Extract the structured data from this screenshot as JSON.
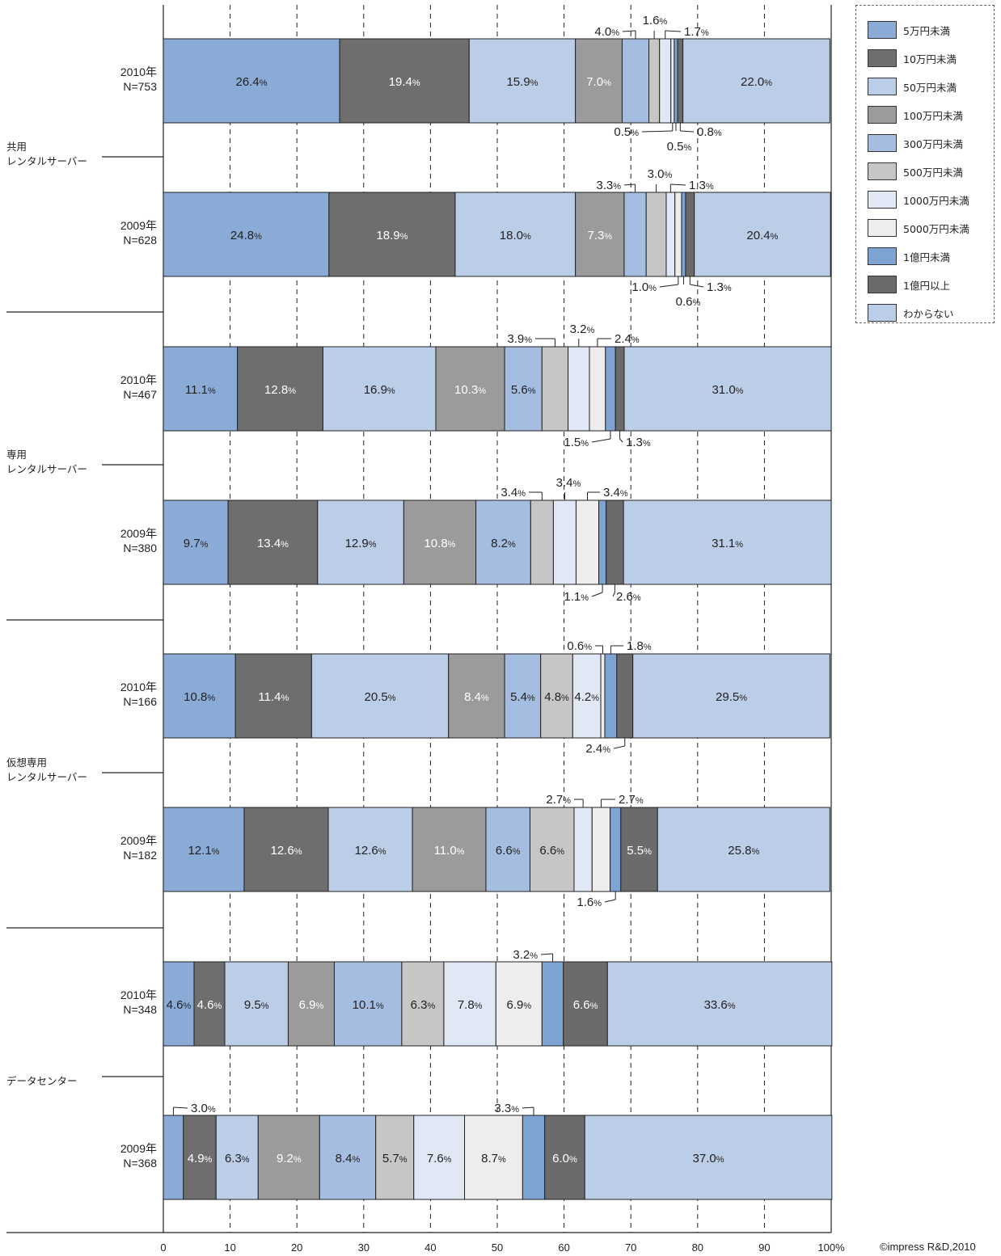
{
  "chart_data": {
    "type": "bar",
    "orientation": "horizontal",
    "stacked": true,
    "xlim": [
      0,
      100
    ],
    "x_ticks": [
      "0",
      "10",
      "20",
      "30",
      "40",
      "50",
      "60",
      "70",
      "80",
      "90",
      "100%"
    ],
    "grid": "vertical dashed",
    "legend_position": "top-right",
    "series": [
      {
        "name": "5万円未満",
        "color": "#8aabd6"
      },
      {
        "name": "10万円未満",
        "color": "#6e6e6e"
      },
      {
        "name": "50万円未満",
        "color": "#bccde8"
      },
      {
        "name": "100万円未満",
        "color": "#9b9b9b"
      },
      {
        "name": "300万円未満",
        "color": "#a5bde0"
      },
      {
        "name": "500万円未満",
        "color": "#c6c6c6"
      },
      {
        "name": "1000万円未満",
        "color": "#e1e8f5"
      },
      {
        "name": "5000万円未満",
        "color": "#ededed"
      },
      {
        "name": "1億円未満",
        "color": "#7ea4d4"
      },
      {
        "name": "1億円以上",
        "color": "#6b6b6b"
      },
      {
        "name": "わからない",
        "color": "#bccde8"
      }
    ],
    "groups": [
      {
        "label": "共用\nレンタルサーバー",
        "bars": [
          {
            "label": "2010年\nN=753",
            "values": [
              26.4,
              19.4,
              15.9,
              7.0,
              4.0,
              1.6,
              1.7,
              0.5,
              0.5,
              0.8,
              22.0
            ]
          },
          {
            "label": "2009年\nN=628",
            "values": [
              24.8,
              18.9,
              18.0,
              7.3,
              3.3,
              3.0,
              1.3,
              1.0,
              0.6,
              1.3,
              20.4
            ]
          }
        ]
      },
      {
        "label": "専用\nレンタルサーバー",
        "bars": [
          {
            "label": "2010年\nN=467",
            "values": [
              11.1,
              12.8,
              16.9,
              10.3,
              5.6,
              3.9,
              3.2,
              2.4,
              1.5,
              1.3,
              31.0
            ]
          },
          {
            "label": "2009年\nN=380",
            "values": [
              9.7,
              13.4,
              12.9,
              10.8,
              8.2,
              3.4,
              3.4,
              3.4,
              1.1,
              2.6,
              31.1
            ]
          }
        ]
      },
      {
        "label": "仮想専用\nレンタルサーバー",
        "bars": [
          {
            "label": "2010年\nN=166",
            "values": [
              10.8,
              11.4,
              20.5,
              8.4,
              5.4,
              4.8,
              4.2,
              0.6,
              1.8,
              2.4,
              29.5
            ]
          },
          {
            "label": "2009年\nN=182",
            "values": [
              12.1,
              12.6,
              12.6,
              11.0,
              6.6,
              6.6,
              2.7,
              2.7,
              1.6,
              5.5,
              25.8
            ]
          }
        ]
      },
      {
        "label": "データセンター",
        "bars": [
          {
            "label": "2010年\nN=348",
            "values": [
              4.6,
              4.6,
              9.5,
              6.9,
              10.1,
              6.3,
              7.8,
              6.9,
              3.2,
              6.6,
              33.6
            ]
          },
          {
            "label": "2009年\nN=368",
            "values": [
              3.0,
              4.9,
              6.3,
              9.2,
              8.4,
              5.7,
              7.6,
              8.7,
              3.3,
              6.0,
              37.0
            ]
          }
        ]
      }
    ]
  },
  "copyright": "©impress R&D,2010"
}
